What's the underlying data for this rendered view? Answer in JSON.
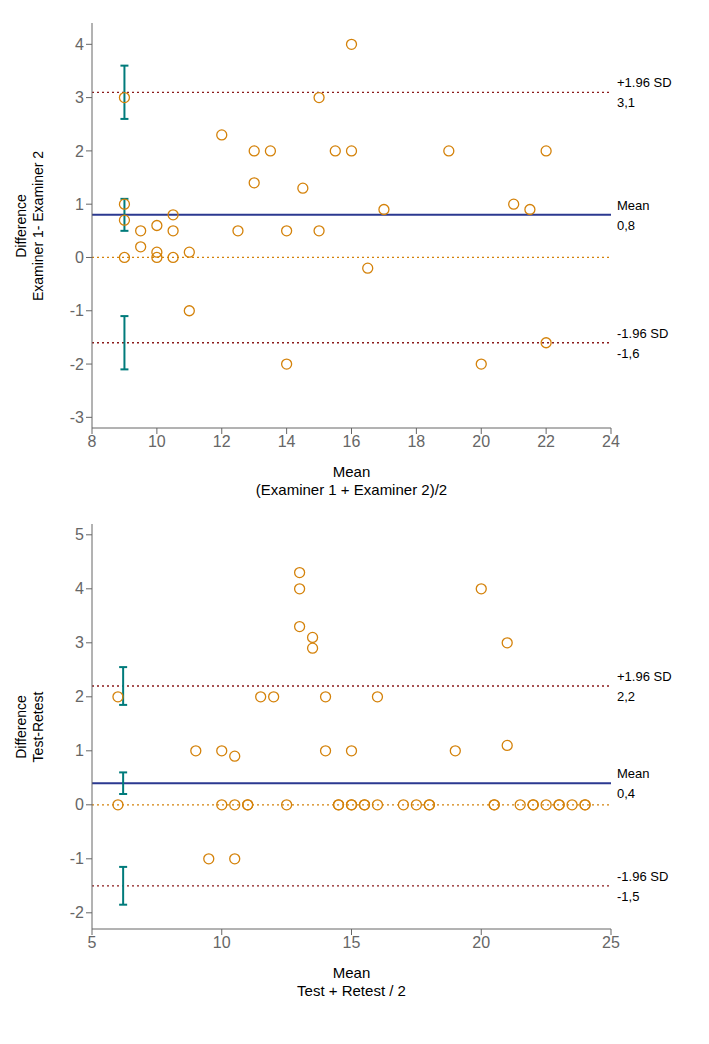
{
  "chart_data": [
    {
      "type": "scatter",
      "xlabel": "Mean\n(Examiner 1 + Examiner 2)/2",
      "ylabel": "Difference\nExaminer 1- Examiner 2",
      "xlim": [
        8,
        24
      ],
      "ylim": [
        -3.2,
        4.4
      ],
      "xticks": [
        8,
        10,
        12,
        14,
        16,
        18,
        20,
        22,
        24
      ],
      "yticks": [
        -3,
        -2,
        -1,
        0,
        1,
        2,
        3,
        4
      ],
      "grid": false,
      "x": [
        9.0,
        9.0,
        9.0,
        9.0,
        9.5,
        9.5,
        10.0,
        10.0,
        10.0,
        10.5,
        10.5,
        10.5,
        11.0,
        11.0,
        12.0,
        12.5,
        13.0,
        13.0,
        13.5,
        14.0,
        14.0,
        14.5,
        15.0,
        15.0,
        15.5,
        16.0,
        16.0,
        16.5,
        17.0,
        19.0,
        20.0,
        21.0,
        21.5,
        22.0,
        22.0
      ],
      "values": [
        3.0,
        1.0,
        0.7,
        0.0,
        0.5,
        0.2,
        0.6,
        0.1,
        0.0,
        0.8,
        0.5,
        0.0,
        -1.0,
        0.1,
        2.3,
        0.5,
        2.0,
        1.4,
        2.0,
        -2.0,
        0.5,
        1.3,
        3.0,
        0.5,
        2.0,
        4.0,
        2.0,
        -0.2,
        0.9,
        2.0,
        -2.0,
        1.0,
        0.9,
        2.0,
        -1.6
      ],
      "color": "#d4820a",
      "marker": "open_circle",
      "reference_lines": [
        {
          "y": 0.8,
          "color": "#2b3990",
          "line_style": "solid"
        },
        {
          "y": 3.1,
          "color": "#8b1a1a",
          "line_style": "dotted"
        },
        {
          "y": -1.6,
          "color": "#8b1a1a",
          "line_style": "dotted"
        },
        {
          "y": 0.0,
          "color": "#d4820a",
          "line_style": "dotted"
        }
      ],
      "error_bars": {
        "x": 9.0,
        "color": "#007b7b",
        "bars": [
          {
            "low": 2.6,
            "high": 3.6
          },
          {
            "low": 0.5,
            "high": 1.1
          },
          {
            "low": -2.1,
            "high": -1.1
          }
        ]
      },
      "annotations": [
        {
          "y": 3.1,
          "above": "+1.96 SD",
          "below": "3,1"
        },
        {
          "y": 0.8,
          "above": "Mean",
          "below": "0,8"
        },
        {
          "y": -1.6,
          "above": "-1.96 SD",
          "below": "-1,6"
        }
      ]
    },
    {
      "type": "scatter",
      "xlabel": "Mean\nTest + Retest / 2",
      "ylabel": "Difference\nTest-Retest",
      "xlim": [
        5,
        25
      ],
      "ylim": [
        -2.3,
        5.2
      ],
      "xticks": [
        5,
        10,
        15,
        20,
        25
      ],
      "yticks": [
        -2,
        -1,
        0,
        1,
        2,
        3,
        4,
        5
      ],
      "grid": false,
      "x": [
        6.0,
        6.0,
        9.0,
        9.5,
        10.0,
        10.0,
        10.5,
        10.5,
        10.5,
        11.0,
        11.0,
        11.5,
        12.0,
        12.5,
        13.0,
        13.0,
        13.0,
        13.5,
        13.5,
        14.0,
        14.0,
        14.5,
        14.5,
        15.0,
        15.0,
        15.0,
        15.5,
        15.5,
        16.0,
        16.0,
        17.0,
        17.5,
        18.0,
        18.0,
        19.0,
        20.0,
        20.5,
        20.5,
        21.0,
        21.0,
        21.5,
        22.0,
        22.0,
        22.5,
        23.0,
        23.0,
        23.5,
        24.0,
        24.0
      ],
      "values": [
        2.0,
        0.0,
        1.0,
        -1.0,
        1.0,
        0.0,
        0.9,
        0.0,
        -1.0,
        0.0,
        0.0,
        2.0,
        2.0,
        0.0,
        3.3,
        4.0,
        4.3,
        3.1,
        2.9,
        2.0,
        1.0,
        0.0,
        0.0,
        1.0,
        0.0,
        0.0,
        0.0,
        0.0,
        2.0,
        0.0,
        0.0,
        0.0,
        0.0,
        0.0,
        1.0,
        4.0,
        0.0,
        0.0,
        1.1,
        3.0,
        0.0,
        0.0,
        0.0,
        0.0,
        0.0,
        0.0,
        0.0,
        0.0,
        0.0
      ],
      "color": "#d4820a",
      "marker": "open_circle",
      "reference_lines": [
        {
          "y": 0.4,
          "color": "#2b3990",
          "line_style": "solid"
        },
        {
          "y": 2.2,
          "color": "#8b1a1a",
          "line_style": "dotted"
        },
        {
          "y": -1.5,
          "color": "#8b1a1a",
          "line_style": "dotted"
        },
        {
          "y": 0.0,
          "color": "#d4820a",
          "line_style": "dotted"
        }
      ],
      "error_bars": {
        "x": 6.2,
        "color": "#007b7b",
        "bars": [
          {
            "low": 1.85,
            "high": 2.55
          },
          {
            "low": 0.2,
            "high": 0.6
          },
          {
            "low": -1.85,
            "high": -1.15
          }
        ]
      },
      "annotations": [
        {
          "y": 2.2,
          "above": "+1.96 SD",
          "below": "2,2"
        },
        {
          "y": 0.4,
          "above": "Mean",
          "below": "0,4"
        },
        {
          "y": -1.5,
          "above": "-1.96 SD",
          "below": "-1,5"
        }
      ]
    }
  ]
}
